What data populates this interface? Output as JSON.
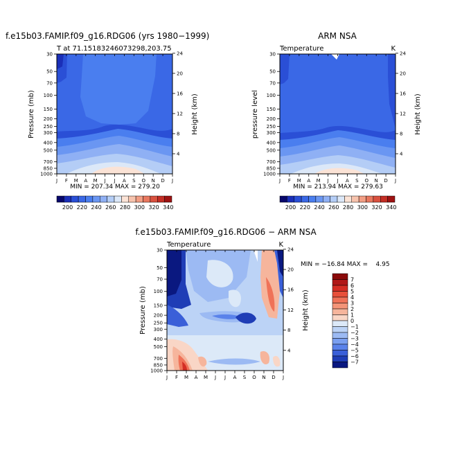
{
  "chart_data": [
    {
      "type": "heatmap",
      "title": "f.e15b03.FAMIP.f09_g16.RDG06 (yrs 1980−1999)",
      "subtitle": "T at 71.15183246073298,203.75",
      "ylabel": "Pressure (mb)",
      "y2label": "Height (km)",
      "xticks": [
        "J",
        "F",
        "M",
        "A",
        "M",
        "J",
        "J",
        "A",
        "S",
        "O",
        "N",
        "D",
        "J"
      ],
      "yticks": [
        "30",
        "50",
        "70",
        "100",
        "150",
        "200",
        "250",
        "300",
        "400",
        "500",
        "700",
        "850",
        "1000"
      ],
      "y2ticks": [
        "24",
        "20",
        "16",
        "12",
        "8",
        "4"
      ],
      "stats": "MIN = 207.34 MAX = 279.20",
      "min": 207.34,
      "max": 279.2
    },
    {
      "type": "heatmap",
      "title": "ARM NSA",
      "subtitle": "Temperature",
      "units": "K",
      "ylabel": "pressure level",
      "y2label": "Height (km)",
      "xticks": [
        "J",
        "F",
        "M",
        "A",
        "M",
        "J",
        "J",
        "A",
        "S",
        "O",
        "N",
        "D",
        "J"
      ],
      "yticks": [
        "30",
        "50",
        "70",
        "100",
        "150",
        "200",
        "250",
        "300",
        "400",
        "500",
        "700",
        "850",
        "1000"
      ],
      "y2ticks": [
        "24",
        "20",
        "16",
        "12",
        "8",
        "4"
      ],
      "stats": "MIN = 213.94 MAX = 279.63",
      "min": 213.94,
      "max": 279.63
    },
    {
      "type": "heatmap",
      "title": "f.e15b03.FAMIP.f09_g16.RDG06 − ARM NSA",
      "subtitle": "Temperature",
      "units": "K",
      "ylabel": "Pressure (mb)",
      "y2label": "Height (km)",
      "xticks": [
        "J",
        "F",
        "M",
        "A",
        "M",
        "J",
        "J",
        "A",
        "S",
        "O",
        "N",
        "D",
        "J"
      ],
      "yticks": [
        "30",
        "50",
        "70",
        "100",
        "150",
        "200",
        "250",
        "300",
        "400",
        "500",
        "700",
        "850",
        "1000"
      ],
      "y2ticks": [
        "24",
        "20",
        "16",
        "12",
        "8",
        "4"
      ],
      "stats": "MIN = −16.84 MAX =    4.95",
      "min": -16.84,
      "max": 4.95
    }
  ],
  "colorbar_abs": {
    "labels": [
      "200",
      "220",
      "240",
      "260",
      "280",
      "300",
      "320",
      "340"
    ],
    "colors": [
      "#08086b",
      "#1a2fb8",
      "#2a4fd6",
      "#3a68e6",
      "#4a7eef",
      "#6a96f2",
      "#8fb0f4",
      "#b4cdf6",
      "#dce8f8",
      "#fbe3d6",
      "#f7c3ad",
      "#f29e84",
      "#e8785f",
      "#d9513f",
      "#c42e25",
      "#9e1212"
    ]
  },
  "colorbar_diff": {
    "labels": [
      "7",
      "6",
      "5",
      "4",
      "3",
      "2",
      "1",
      "0",
      "−1",
      "−2",
      "−3",
      "−4",
      "−5",
      "−6",
      "−7"
    ],
    "colors": [
      "#8b0a0a",
      "#b01818",
      "#d42d24",
      "#e8503a",
      "#ef7258",
      "#f39478",
      "#f6b59c",
      "#f9d6c6",
      "#dce9f8",
      "#bcd3f6",
      "#9cbaf3",
      "#7a9ff0",
      "#5a82ea",
      "#3a5fd8",
      "#1f3db6",
      "#0a1880"
    ]
  }
}
